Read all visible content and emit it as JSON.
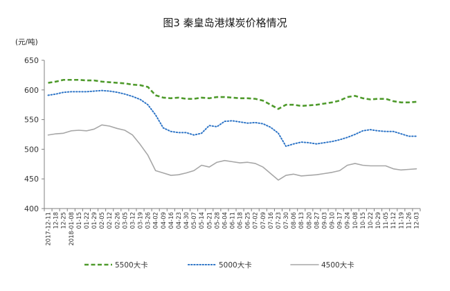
{
  "chart_data": {
    "type": "line",
    "title": "图3 秦皇岛港煤炭价格情况",
    "ylabel": "(元/吨)",
    "ylim": [
      400,
      650
    ],
    "yticks": [
      400,
      450,
      500,
      550,
      600,
      650
    ],
    "grid": false,
    "legend_position": "bottom",
    "x_tick_labels": [
      "2017-12-11",
      "12-18",
      "12-25",
      "2018-01-08",
      "01-15",
      "01-22",
      "01-29",
      "02-05",
      "02-12",
      "02-26",
      "03-05",
      "03-12",
      "03-19",
      "03-26",
      "04-02",
      "04-09",
      "04-16",
      "04-23",
      "04-30",
      "05-07",
      "05-14",
      "05-21",
      "05-28",
      "06-04",
      "06-11",
      "06-18",
      "06-25",
      "07-02",
      "07-09",
      "07-16",
      "07-23",
      "07-30",
      "08-06",
      "08-13",
      "08-20",
      "08-27",
      "09-03",
      "09-10",
      "09-17",
      "09-24",
      "10-08",
      "10-15",
      "10-22",
      "10-29",
      "11-05",
      "11-12",
      "11-19",
      "11-26",
      "12-03"
    ],
    "series": [
      {
        "name": "5500大卡",
        "color": "#4e9a2b",
        "dash": "dashed",
        "values": [
          612,
          614,
          617,
          617,
          617,
          616,
          616,
          614,
          613,
          612,
          611,
          609,
          608,
          605,
          591,
          587,
          586,
          587,
          585,
          585,
          587,
          586,
          588,
          588,
          587,
          586,
          586,
          585,
          582,
          575,
          568,
          575,
          575,
          573,
          574,
          575,
          577,
          579,
          582,
          588,
          590,
          586,
          584,
          585,
          585,
          581,
          579,
          579,
          580
        ]
      },
      {
        "name": "5000大卡",
        "color": "#2e75c7",
        "dash": "dotted",
        "values": [
          591,
          593,
          596,
          597,
          597,
          597,
          598,
          599,
          598,
          596,
          593,
          589,
          584,
          575,
          558,
          536,
          530,
          528,
          528,
          524,
          527,
          540,
          538,
          547,
          548,
          546,
          544,
          545,
          543,
          537,
          527,
          505,
          509,
          512,
          511,
          509,
          511,
          513,
          516,
          520,
          525,
          531,
          533,
          531,
          530,
          530,
          526,
          522,
          522
        ]
      },
      {
        "name": "4500大卡",
        "color": "#a6a6a6",
        "dash": "solid",
        "values": [
          524,
          526,
          527,
          531,
          532,
          531,
          534,
          541,
          539,
          535,
          532,
          524,
          508,
          490,
          464,
          460,
          456,
          457,
          460,
          464,
          473,
          470,
          478,
          481,
          479,
          477,
          478,
          476,
          470,
          459,
          448,
          456,
          458,
          455,
          456,
          457,
          459,
          461,
          464,
          473,
          476,
          473,
          472,
          472,
          472,
          467,
          465,
          466,
          467
        ]
      }
    ]
  }
}
